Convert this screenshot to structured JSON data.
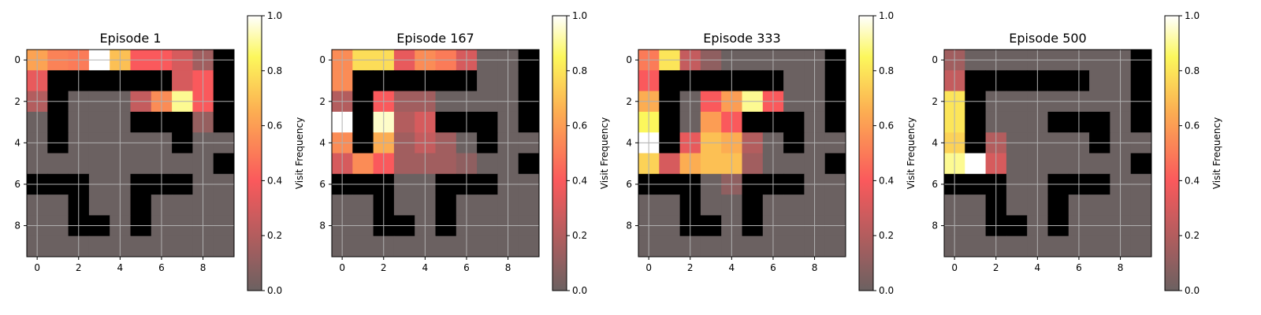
{
  "chart_data": [
    {
      "type": "heatmap",
      "title": "Episode 1",
      "xticks": [
        "0",
        "2",
        "4",
        "6",
        "8"
      ],
      "yticks": [
        "0",
        "2",
        "4",
        "6",
        "8"
      ],
      "colorbar": {
        "label": "Visit Frequency",
        "range": [
          0,
          1
        ],
        "ticks": [
          "0.0",
          "0.2",
          "0.4",
          "0.6",
          "0.8",
          "1.0"
        ]
      },
      "grid": true,
      "walls": [
        [
          0,
          9
        ],
        [
          1,
          1
        ],
        [
          1,
          2
        ],
        [
          1,
          3
        ],
        [
          1,
          4
        ],
        [
          1,
          5
        ],
        [
          1,
          6
        ],
        [
          1,
          9
        ],
        [
          2,
          1
        ],
        [
          2,
          9
        ],
        [
          3,
          1
        ],
        [
          3,
          5
        ],
        [
          3,
          6
        ],
        [
          3,
          7
        ],
        [
          3,
          9
        ],
        [
          4,
          1
        ],
        [
          4,
          7
        ],
        [
          5,
          9
        ],
        [
          6,
          0
        ],
        [
          6,
          1
        ],
        [
          6,
          2
        ],
        [
          6,
          5
        ],
        [
          6,
          6
        ],
        [
          6,
          7
        ],
        [
          7,
          2
        ],
        [
          7,
          5
        ],
        [
          8,
          2
        ],
        [
          8,
          3
        ],
        [
          8,
          5
        ]
      ],
      "visits": [
        [
          0.62,
          0.52,
          0.5,
          1.0,
          0.7,
          0.4,
          0.4,
          0.3,
          0.15,
          null
        ],
        [
          0.35,
          null,
          null,
          null,
          null,
          null,
          null,
          0.3,
          0.4,
          null
        ],
        [
          0.2,
          null,
          0,
          0,
          0,
          0.25,
          0.55,
          0.9,
          0.4,
          null
        ],
        [
          0,
          null,
          0,
          0,
          0,
          null,
          null,
          null,
          0.12,
          null
        ]
      ]
    },
    {
      "type": "heatmap",
      "title": "Episode 167",
      "xticks": [
        "0",
        "2",
        "4",
        "6",
        "8"
      ],
      "yticks": [
        "0",
        "2",
        "4",
        "6",
        "8"
      ],
      "colorbar": {
        "label": "Visit Frequency",
        "range": [
          0,
          1
        ],
        "ticks": [
          "0.0",
          "0.2",
          "0.4",
          "0.6",
          "0.8",
          "1.0"
        ]
      },
      "grid": true,
      "walls": [
        [
          0,
          9
        ],
        [
          1,
          1
        ],
        [
          1,
          2
        ],
        [
          1,
          3
        ],
        [
          1,
          4
        ],
        [
          1,
          5
        ],
        [
          1,
          6
        ],
        [
          1,
          9
        ],
        [
          2,
          1
        ],
        [
          2,
          9
        ],
        [
          3,
          1
        ],
        [
          3,
          5
        ],
        [
          3,
          6
        ],
        [
          3,
          7
        ],
        [
          3,
          9
        ],
        [
          4,
          1
        ],
        [
          4,
          7
        ],
        [
          5,
          9
        ],
        [
          6,
          0
        ],
        [
          6,
          1
        ],
        [
          6,
          2
        ],
        [
          6,
          5
        ],
        [
          6,
          6
        ],
        [
          6,
          7
        ],
        [
          7,
          2
        ],
        [
          7,
          5
        ],
        [
          8,
          2
        ],
        [
          8,
          3
        ],
        [
          8,
          5
        ]
      ],
      "visits": [
        [
          0.55,
          0.78,
          0.78,
          0.35,
          0.55,
          0.5,
          0.3,
          0,
          0,
          null
        ],
        [
          0.55,
          null,
          null,
          null,
          null,
          null,
          null,
          0,
          0,
          null
        ],
        [
          0.2,
          null,
          0.4,
          0.15,
          0.15,
          0,
          0,
          0,
          0,
          null
        ],
        [
          1.0,
          null,
          0.95,
          0.2,
          0.3,
          null,
          null,
          null,
          0,
          null
        ],
        [
          0.55,
          null,
          0.65,
          0.15,
          0.25,
          0.15,
          0,
          null,
          0,
          0
        ],
        [
          0.3,
          0.55,
          0.4,
          0.15,
          0.15,
          0.15,
          0.1,
          0,
          0,
          null
        ]
      ]
    },
    {
      "type": "heatmap",
      "title": "Episode 333",
      "xticks": [
        "0",
        "2",
        "4",
        "6",
        "8"
      ],
      "yticks": [
        "0",
        "2",
        "4",
        "6",
        "8"
      ],
      "colorbar": {
        "label": "Visit Frequency",
        "range": [
          0,
          1
        ],
        "ticks": [
          "0.0",
          "0.2",
          "0.4",
          "0.6",
          "0.8",
          "1.0"
        ]
      },
      "grid": true,
      "walls": [
        [
          0,
          9
        ],
        [
          1,
          1
        ],
        [
          1,
          2
        ],
        [
          1,
          3
        ],
        [
          1,
          4
        ],
        [
          1,
          5
        ],
        [
          1,
          6
        ],
        [
          1,
          9
        ],
        [
          2,
          1
        ],
        [
          2,
          9
        ],
        [
          3,
          1
        ],
        [
          3,
          5
        ],
        [
          3,
          6
        ],
        [
          3,
          7
        ],
        [
          3,
          9
        ],
        [
          4,
          1
        ],
        [
          4,
          7
        ],
        [
          5,
          9
        ],
        [
          6,
          0
        ],
        [
          6,
          1
        ],
        [
          6,
          2
        ],
        [
          6,
          5
        ],
        [
          6,
          6
        ],
        [
          6,
          7
        ],
        [
          7,
          2
        ],
        [
          7,
          5
        ],
        [
          8,
          2
        ],
        [
          8,
          3
        ],
        [
          8,
          5
        ]
      ],
      "visits": [
        [
          0.5,
          0.8,
          0.25,
          0.1,
          0,
          0,
          0,
          0,
          0,
          null
        ],
        [
          0.4,
          null,
          null,
          null,
          null,
          null,
          null,
          0,
          0,
          null
        ],
        [
          0.65,
          null,
          0,
          0.4,
          0.6,
          0.9,
          0.4,
          0,
          0,
          null
        ],
        [
          0.85,
          null,
          0,
          0.6,
          0.4,
          null,
          null,
          null,
          0,
          null
        ],
        [
          1.0,
          null,
          0.35,
          0.7,
          0.65,
          0.2,
          0,
          null,
          0,
          0
        ],
        [
          0.75,
          0.3,
          0.65,
          0.7,
          0.7,
          0.15,
          0,
          0,
          0,
          null
        ],
        [
          null,
          null,
          null,
          0,
          0.1,
          null,
          null,
          null,
          0,
          0
        ]
      ]
    },
    {
      "type": "heatmap",
      "title": "Episode 500",
      "xticks": [
        "0",
        "2",
        "4",
        "6",
        "8"
      ],
      "yticks": [
        "0",
        "2",
        "4",
        "6",
        "8"
      ],
      "colorbar": {
        "label": "Visit Frequency",
        "range": [
          0,
          1
        ],
        "ticks": [
          "0.0",
          "0.2",
          "0.4",
          "0.6",
          "0.8",
          "1.0"
        ]
      },
      "grid": true,
      "walls": [
        [
          0,
          9
        ],
        [
          1,
          1
        ],
        [
          1,
          2
        ],
        [
          1,
          3
        ],
        [
          1,
          4
        ],
        [
          1,
          5
        ],
        [
          1,
          6
        ],
        [
          1,
          9
        ],
        [
          2,
          1
        ],
        [
          2,
          9
        ],
        [
          3,
          1
        ],
        [
          3,
          5
        ],
        [
          3,
          6
        ],
        [
          3,
          7
        ],
        [
          3,
          9
        ],
        [
          4,
          1
        ],
        [
          4,
          7
        ],
        [
          5,
          9
        ],
        [
          6,
          0
        ],
        [
          6,
          1
        ],
        [
          6,
          2
        ],
        [
          6,
          5
        ],
        [
          6,
          6
        ],
        [
          6,
          7
        ],
        [
          7,
          2
        ],
        [
          7,
          5
        ],
        [
          8,
          2
        ],
        [
          8,
          3
        ],
        [
          8,
          5
        ]
      ],
      "visits": [
        [
          0.15,
          0,
          0,
          0,
          0,
          0,
          0,
          0,
          0,
          null
        ],
        [
          0.25,
          null,
          null,
          null,
          null,
          null,
          null,
          0,
          0,
          null
        ],
        [
          0.8,
          null,
          0,
          0,
          0,
          0,
          0,
          0,
          0,
          null
        ],
        [
          0.8,
          null,
          0,
          0,
          0,
          null,
          null,
          null,
          0,
          null
        ],
        [
          0.75,
          null,
          0.2,
          0,
          0,
          0,
          0,
          null,
          0,
          0
        ],
        [
          0.9,
          1.0,
          0.3,
          0,
          0,
          0,
          0,
          0,
          0,
          null
        ]
      ]
    }
  ]
}
